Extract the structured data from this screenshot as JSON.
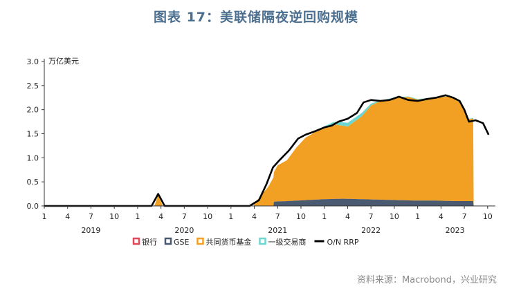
{
  "title": "图表 17：美联储隔夜逆回购规模",
  "source": "资料来源：Macrobond，兴业研究",
  "chart_data": {
    "type": "area",
    "unit": "万亿美元",
    "x_start": "2019-01",
    "x_end": "2023-10",
    "ylim": [
      0,
      3.0
    ],
    "yticks": [
      "0.0",
      "0.5",
      "1.0",
      "1.5",
      "2.0",
      "2.5",
      "3.0"
    ],
    "xticks": [
      {
        "label": "1",
        "date": "2019-01"
      },
      {
        "label": "4",
        "date": "2019-04"
      },
      {
        "label": "7",
        "date": "2019-07"
      },
      {
        "label": "10",
        "date": "2019-10"
      },
      {
        "label": "1",
        "date": "2020-01"
      },
      {
        "label": "4",
        "date": "2020-04"
      },
      {
        "label": "7",
        "date": "2020-07"
      },
      {
        "label": "10",
        "date": "2020-10"
      },
      {
        "label": "1",
        "date": "2021-01"
      },
      {
        "label": "4",
        "date": "2021-04"
      },
      {
        "label": "7",
        "date": "2021-07"
      },
      {
        "label": "10",
        "date": "2021-10"
      },
      {
        "label": "1",
        "date": "2022-01"
      },
      {
        "label": "4",
        "date": "2022-04"
      },
      {
        "label": "7",
        "date": "2022-07"
      },
      {
        "label": "10",
        "date": "2022-10"
      },
      {
        "label": "1",
        "date": "2023-01"
      },
      {
        "label": "4",
        "date": "2023-04"
      },
      {
        "label": "7",
        "date": "2023-07"
      },
      {
        "label": "10",
        "date": "2023-10"
      }
    ],
    "years": [
      "2019",
      "2020",
      "2021",
      "2022",
      "2023"
    ],
    "legend_position": "bottom",
    "series": [
      {
        "name": "银行",
        "color": "#e0485a",
        "values": [
          [
            2021.5,
            0.0
          ],
          [
            2023.6,
            0.0
          ]
        ]
      },
      {
        "name": "GSE",
        "color": "#4a5a70",
        "values": [
          [
            2021.46,
            0.09
          ],
          [
            2021.6,
            0.1
          ],
          [
            2021.8,
            0.12
          ],
          [
            2022.0,
            0.14
          ],
          [
            2022.2,
            0.15
          ],
          [
            2022.4,
            0.14
          ],
          [
            2022.6,
            0.13
          ],
          [
            2022.8,
            0.12
          ],
          [
            2023.0,
            0.11
          ],
          [
            2023.2,
            0.11
          ],
          [
            2023.4,
            0.1
          ],
          [
            2023.6,
            0.1
          ]
        ]
      },
      {
        "name": "共同货币基金",
        "color": "#f2a023",
        "values": [
          [
            2021.25,
            0.05
          ],
          [
            2021.4,
            0.4
          ],
          [
            2021.5,
            0.75
          ],
          [
            2021.6,
            0.85
          ],
          [
            2021.7,
            1.1
          ],
          [
            2021.8,
            1.3
          ],
          [
            2021.95,
            1.45
          ],
          [
            2022.1,
            1.55
          ],
          [
            2022.25,
            1.5
          ],
          [
            2022.4,
            1.72
          ],
          [
            2022.5,
            1.95
          ],
          [
            2022.6,
            2.05
          ],
          [
            2022.75,
            2.12
          ],
          [
            2022.9,
            2.15
          ],
          [
            2023.0,
            2.1
          ],
          [
            2023.1,
            2.12
          ],
          [
            2023.25,
            2.15
          ],
          [
            2023.35,
            2.18
          ],
          [
            2023.45,
            2.05
          ],
          [
            2023.55,
            1.7
          ],
          [
            2023.6,
            1.72
          ]
        ]
      },
      {
        "name": "一级交易商",
        "color": "#6fd6cf",
        "values": [
          [
            2021.95,
            0.02
          ],
          [
            2022.1,
            0.05
          ],
          [
            2022.25,
            0.08
          ],
          [
            2022.4,
            0.07
          ],
          [
            2022.5,
            0.04
          ],
          [
            2022.6,
            0.01
          ],
          [
            2023.6,
            0.01
          ]
        ]
      },
      {
        "name": "O/N RRP",
        "color": "#000000",
        "values": [
          [
            2019.0,
            0.0
          ],
          [
            2020.15,
            0.0
          ],
          [
            2020.22,
            0.25
          ],
          [
            2020.29,
            0.0
          ],
          [
            2021.2,
            0.0
          ],
          [
            2021.3,
            0.12
          ],
          [
            2021.38,
            0.45
          ],
          [
            2021.45,
            0.8
          ],
          [
            2021.52,
            0.95
          ],
          [
            2021.62,
            1.15
          ],
          [
            2021.72,
            1.4
          ],
          [
            2021.8,
            1.48
          ],
          [
            2021.9,
            1.55
          ],
          [
            2022.0,
            1.63
          ],
          [
            2022.08,
            1.67
          ],
          [
            2022.15,
            1.75
          ],
          [
            2022.25,
            1.81
          ],
          [
            2022.35,
            1.93
          ],
          [
            2022.42,
            2.15
          ],
          [
            2022.5,
            2.2
          ],
          [
            2022.6,
            2.18
          ],
          [
            2022.7,
            2.2
          ],
          [
            2022.8,
            2.27
          ],
          [
            2022.9,
            2.2
          ],
          [
            2023.0,
            2.18
          ],
          [
            2023.1,
            2.22
          ],
          [
            2023.2,
            2.25
          ],
          [
            2023.3,
            2.3
          ],
          [
            2023.38,
            2.25
          ],
          [
            2023.45,
            2.18
          ],
          [
            2023.5,
            2.0
          ],
          [
            2023.55,
            1.75
          ],
          [
            2023.62,
            1.78
          ],
          [
            2023.7,
            1.72
          ],
          [
            2023.76,
            1.48
          ]
        ]
      }
    ]
  }
}
